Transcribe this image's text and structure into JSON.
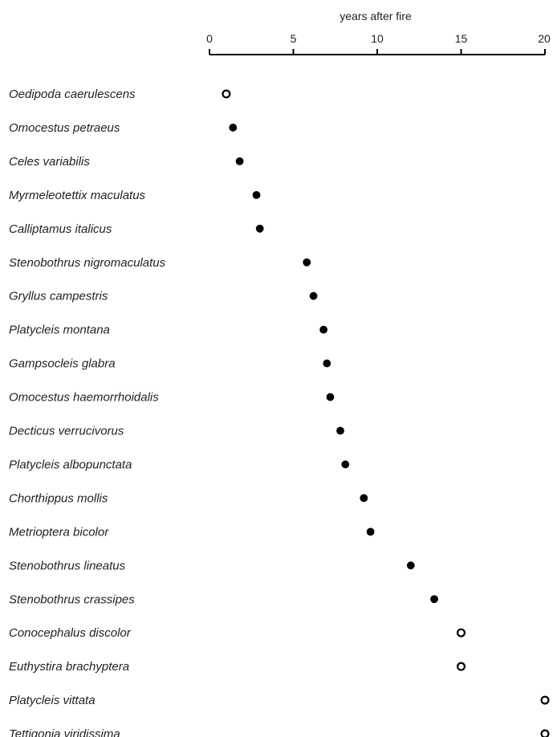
{
  "chart_data": {
    "type": "scatter",
    "title": "",
    "xlabel": "years after fire",
    "ylabel": "",
    "xlim": [
      0,
      20
    ],
    "x_ticks": [
      "0",
      "5",
      "10",
      "15",
      "20"
    ],
    "x_tick_values": [
      0,
      5,
      10,
      15,
      20
    ],
    "axis_position": "top",
    "grid": false,
    "marker_styles": {
      "filled": "#000000",
      "open": "#ffffff"
    },
    "points": [
      {
        "species": "Oedipoda caerulescens",
        "x": 1.0,
        "marker": "open"
      },
      {
        "species": "Omocestus petraeus",
        "x": 1.4,
        "marker": "filled"
      },
      {
        "species": "Celes variabilis",
        "x": 1.8,
        "marker": "filled"
      },
      {
        "species": "Myrmeleotettix maculatus",
        "x": 2.8,
        "marker": "filled"
      },
      {
        "species": "Calliptamus italicus",
        "x": 3.0,
        "marker": "filled"
      },
      {
        "species": "Stenobothrus nigromaculatus",
        "x": 5.8,
        "marker": "filled"
      },
      {
        "species": "Gryllus campestris",
        "x": 6.2,
        "marker": "filled"
      },
      {
        "species": "Platycleis montana",
        "x": 6.8,
        "marker": "filled"
      },
      {
        "species": "Gampsocleis glabra",
        "x": 7.0,
        "marker": "filled"
      },
      {
        "species": "Omocestus haemorrhoidalis",
        "x": 7.2,
        "marker": "filled"
      },
      {
        "species": "Decticus verrucivorus",
        "x": 7.8,
        "marker": "filled"
      },
      {
        "species": "Platycleis albopunctata",
        "x": 8.1,
        "marker": "filled"
      },
      {
        "species": "Chorthippus mollis",
        "x": 9.2,
        "marker": "filled"
      },
      {
        "species": "Metrioptera bicolor",
        "x": 9.6,
        "marker": "filled"
      },
      {
        "species": "Stenobothrus lineatus",
        "x": 12.0,
        "marker": "filled"
      },
      {
        "species": "Stenobothrus crassipes",
        "x": 13.4,
        "marker": "filled"
      },
      {
        "species": "Conocephalus discolor",
        "x": 15.0,
        "marker": "open"
      },
      {
        "species": "Euthystira brachyptera",
        "x": 15.0,
        "marker": "open"
      },
      {
        "species": "Platycleis vittata",
        "x": 20.0,
        "marker": "open"
      },
      {
        "species": "Tettigonia viridissima",
        "x": 20.0,
        "marker": "open"
      }
    ]
  }
}
